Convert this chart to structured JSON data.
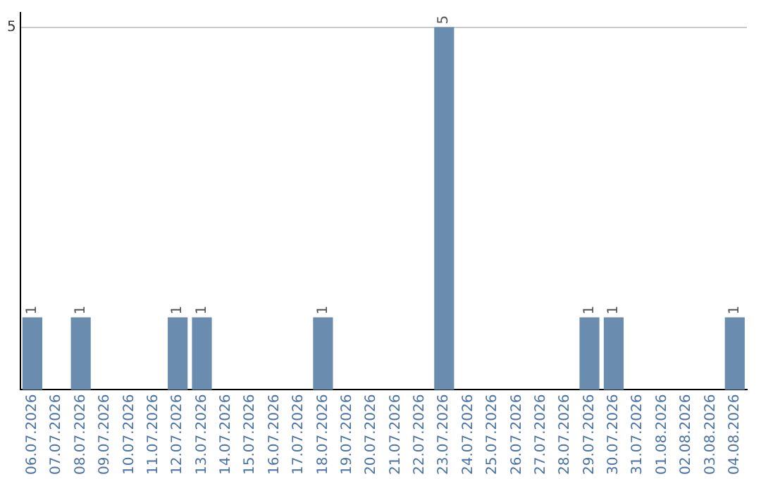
{
  "chart_data": {
    "type": "bar",
    "categories": [
      "06.07.2026",
      "07.07.2026",
      "08.07.2026",
      "09.07.2026",
      "10.07.2026",
      "11.07.2026",
      "12.07.2026",
      "13.07.2026",
      "14.07.2026",
      "15.07.2026",
      "16.07.2026",
      "17.07.2026",
      "18.07.2026",
      "19.07.2026",
      "20.07.2026",
      "21.07.2026",
      "22.07.2026",
      "23.07.2026",
      "24.07.2026",
      "25.07.2026",
      "26.07.2026",
      "27.07.2026",
      "28.07.2026",
      "29.07.2026",
      "30.07.2026",
      "31.07.2026",
      "01.08.2026",
      "02.08.2026",
      "03.08.2026",
      "04.08.2026"
    ],
    "values": [
      1,
      0,
      1,
      0,
      0,
      0,
      1,
      1,
      0,
      0,
      0,
      0,
      1,
      0,
      0,
      0,
      0,
      5,
      0,
      0,
      0,
      0,
      0,
      1,
      1,
      0,
      0,
      0,
      0,
      1
    ],
    "value_labels": [
      "1",
      null,
      "1",
      null,
      null,
      null,
      "1",
      "1",
      null,
      null,
      null,
      null,
      "1",
      null,
      null,
      null,
      null,
      "5",
      null,
      null,
      null,
      null,
      null,
      "1",
      "1",
      null,
      null,
      null,
      null,
      "1"
    ],
    "color": "#6a8caf",
    "ylim": [
      0,
      5.2
    ],
    "yticks": [
      5
    ],
    "grid": "y",
    "legend": false
  }
}
